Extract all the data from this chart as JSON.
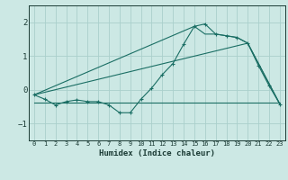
{
  "xlabel": "Humidex (Indice chaleur)",
  "bg_color": "#cce8e4",
  "grid_color": "#aad0cc",
  "line_color": "#1a6e64",
  "xlim": [
    -0.5,
    23.5
  ],
  "ylim": [
    -1.5,
    2.5
  ],
  "yticks": [
    -1,
    0,
    1,
    2
  ],
  "xticks": [
    0,
    1,
    2,
    3,
    4,
    5,
    6,
    7,
    8,
    9,
    10,
    11,
    12,
    13,
    14,
    15,
    16,
    17,
    18,
    19,
    20,
    21,
    22,
    23
  ],
  "series1_x": [
    0,
    1,
    2,
    3,
    4,
    5,
    6,
    7,
    8,
    9,
    10,
    11,
    12,
    13,
    14,
    15,
    16,
    17,
    18,
    19,
    20,
    21,
    22,
    23
  ],
  "series1_y": [
    -0.15,
    -0.28,
    -0.45,
    -0.35,
    -0.3,
    -0.35,
    -0.35,
    -0.45,
    -0.68,
    -0.68,
    -0.28,
    0.05,
    0.45,
    0.78,
    1.35,
    1.88,
    1.95,
    1.65,
    1.6,
    1.55,
    1.38,
    0.72,
    0.12,
    -0.42
  ],
  "series2_x": [
    0,
    15,
    16,
    17,
    18,
    19,
    20,
    23
  ],
  "series2_y": [
    -0.15,
    1.88,
    1.65,
    1.65,
    1.6,
    1.55,
    1.38,
    -0.42
  ],
  "series3_x": [
    0,
    20,
    23
  ],
  "series3_y": [
    -0.15,
    1.38,
    -0.42
  ],
  "hline_x": [
    0,
    23
  ],
  "hline_y": [
    -0.38,
    -0.38
  ]
}
